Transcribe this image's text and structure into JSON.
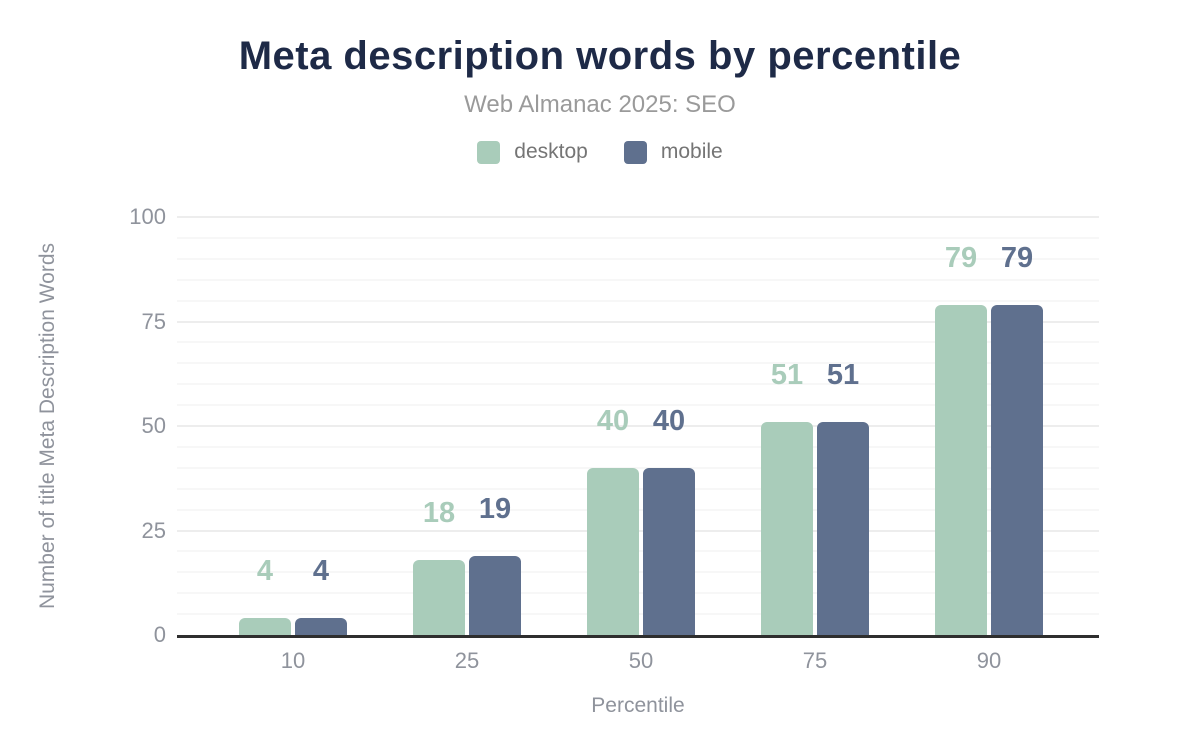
{
  "header": {
    "title": "Meta description words by percentile",
    "subtitle": "Web Almanac 2025: SEO"
  },
  "chart_data": {
    "type": "bar",
    "title": "Meta description words by percentile",
    "subtitle": "Web Almanac 2025: SEO",
    "categories": [
      "10",
      "25",
      "50",
      "75",
      "90"
    ],
    "series": [
      {
        "name": "desktop",
        "color": "#a9ccba",
        "values": [
          4,
          18,
          40,
          51,
          79
        ]
      },
      {
        "name": "mobile",
        "color": "#5f708e",
        "values": [
          4,
          19,
          40,
          51,
          79
        ]
      }
    ],
    "xlabel": "Percentile",
    "ylabel": "Number of title Meta Description Words",
    "ylim": [
      0,
      100
    ],
    "yticks": [
      0,
      25,
      50,
      75,
      100
    ],
    "grid": "horizontal minor every 5, major every 25",
    "legend_position": "top-center",
    "data_labels": true
  },
  "colors": {
    "title": "#1e2a47",
    "subtitle": "#9a9a9a",
    "tick_labels": "#8f939c",
    "legend_text": "#757575",
    "axis_line": "#2e2e2e",
    "grid_minor": "#f7f7f7",
    "grid_major": "#ededed",
    "background": "#ffffff",
    "desktop": "#a9ccba",
    "mobile": "#5f708e"
  }
}
